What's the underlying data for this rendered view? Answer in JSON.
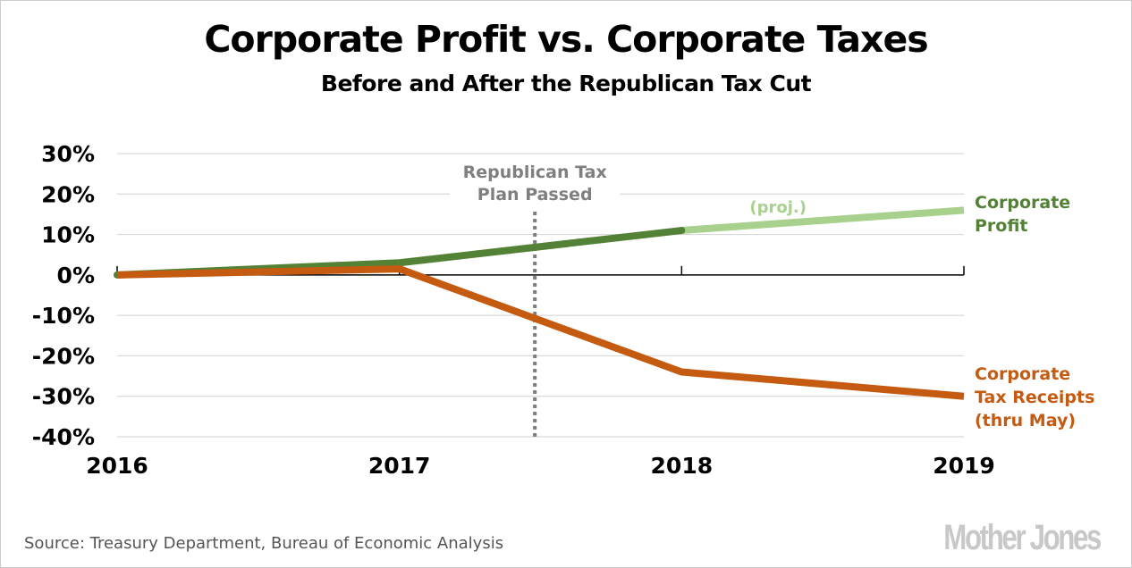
{
  "chart_data": {
    "type": "line",
    "title": "Corporate Profit vs. Corporate Taxes",
    "subtitle": "Before and After the Republican Tax Cut",
    "xlabel": "",
    "ylabel": "",
    "x": [
      2016,
      2017,
      2018,
      2019
    ],
    "x_tick_labels": [
      "2016",
      "2017",
      "2018",
      "2019"
    ],
    "ylim": [
      -40,
      30
    ],
    "y_ticks": [
      30,
      20,
      10,
      0,
      -10,
      -20,
      -30,
      -40
    ],
    "y_tick_labels": [
      "30%",
      "20%",
      "10%",
      "0%",
      "-10%",
      "-20%",
      "-30%",
      "-40%"
    ],
    "grid": true,
    "series": [
      {
        "name": "Corporate Profit",
        "label_lines": [
          "Corporate",
          "Profit"
        ],
        "color": "#538135",
        "projected_color": "#a9d18e",
        "values": [
          0,
          3,
          11,
          16
        ],
        "projected_from_index": 2,
        "projected_annotation": "(proj.)"
      },
      {
        "name": "Corporate Tax Receipts (thru May)",
        "label_lines": [
          "Corporate",
          "Tax Receipts",
          "(thru May)"
        ],
        "color": "#c55a11",
        "values": [
          0,
          1.5,
          -24,
          -30
        ]
      }
    ],
    "annotations": [
      {
        "type": "vertical-line",
        "x": 2017.48,
        "style": "dotted",
        "color": "#7f7f7f",
        "text_lines": [
          "Republican Tax",
          "Plan Passed"
        ]
      }
    ],
    "legend": "inline-right"
  },
  "footer": {
    "source": "Source: Treasury Department, Bureau of Economic Analysis",
    "logo": "Mother Jones"
  },
  "colors": {
    "gridline": "#d9d9d9",
    "axis": "#000000",
    "annotation_text": "#7f7f7f"
  }
}
